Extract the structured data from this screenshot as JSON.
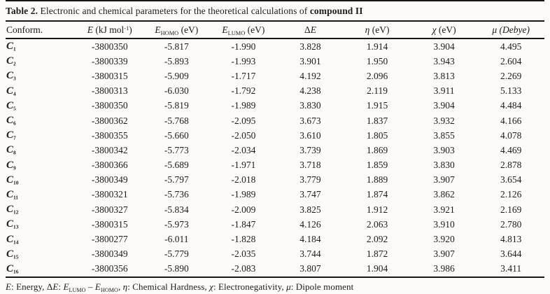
{
  "page": {
    "background_color": "#fcfbf8",
    "text_color": "#1c1c1c",
    "rule_color": "#161616"
  },
  "caption": {
    "text": "Table 2. Electronic and chemical parameters for the theoretical calculations of compound II",
    "segments": [
      {
        "t": "Table 2.",
        "s": "b"
      },
      {
        "t": " Electronic and chemical parameters for the theoretical calculations of ",
        "s": "n"
      },
      {
        "t": "compound II",
        "s": "b"
      }
    ]
  },
  "table": {
    "columns": [
      {
        "id": "conform",
        "text": "Conform.",
        "segments": [
          {
            "t": "Conform.",
            "s": "n"
          }
        ]
      },
      {
        "id": "energy",
        "text": "E (kJ mol-1)",
        "segments": [
          {
            "t": "E",
            "s": "i"
          },
          {
            "t": " (kJ mol",
            "s": "n"
          },
          {
            "t": "-1",
            "s": "sup"
          },
          {
            "t": ")",
            "s": "n"
          }
        ]
      },
      {
        "id": "e-homo",
        "text": "EHOMO (eV)",
        "segments": [
          {
            "t": "E",
            "s": "i"
          },
          {
            "t": "HOMO",
            "s": "sub"
          },
          {
            "t": " (eV)",
            "s": "n"
          }
        ]
      },
      {
        "id": "e-lumo",
        "text": "ELUMO (eV)",
        "segments": [
          {
            "t": "E",
            "s": "i"
          },
          {
            "t": "LUMO",
            "s": "sub"
          },
          {
            "t": " (eV)",
            "s": "n"
          }
        ]
      },
      {
        "id": "delta-e",
        "text": "ΔE",
        "segments": [
          {
            "t": "Δ",
            "s": "n"
          },
          {
            "t": "E",
            "s": "i"
          }
        ]
      },
      {
        "id": "eta",
        "text": "η (eV)",
        "segments": [
          {
            "t": "η",
            "s": "i"
          },
          {
            "t": " (eV)",
            "s": "n"
          }
        ]
      },
      {
        "id": "chi",
        "text": "χ (eV)",
        "segments": [
          {
            "t": "χ",
            "s": "i"
          },
          {
            "t": " (eV)",
            "s": "n"
          }
        ]
      },
      {
        "id": "mu",
        "text": "μ (Debye)",
        "segments": [
          {
            "t": "μ (Debye)",
            "s": "i"
          }
        ]
      }
    ],
    "rows": [
      {
        "conformer": {
          "symbol": "C",
          "sub": "1"
        },
        "values": [
          "-3800350",
          "-5.817",
          "-1.990",
          "3.828",
          "1.914",
          "3.904",
          "4.495"
        ]
      },
      {
        "conformer": {
          "symbol": "C",
          "sub": "2"
        },
        "values": [
          "-3800339",
          "-5.893",
          "-1.993",
          "3.901",
          "1.950",
          "3.943",
          "2.604"
        ]
      },
      {
        "conformer": {
          "symbol": "C",
          "sub": "3"
        },
        "values": [
          "-3800315",
          "-5.909",
          "-1.717",
          "4.192",
          "2.096",
          "3.813",
          "2.269"
        ]
      },
      {
        "conformer": {
          "symbol": "C",
          "sub": "4"
        },
        "values": [
          "-3800313",
          "-6.030",
          "-1.792",
          "4.238",
          "2.119",
          "3.911",
          "5.133"
        ]
      },
      {
        "conformer": {
          "symbol": "C",
          "sub": "5"
        },
        "values": [
          "-3800350",
          "-5.819",
          "-1.989",
          "3.830",
          "1.915",
          "3.904",
          "4.484"
        ]
      },
      {
        "conformer": {
          "symbol": "C",
          "sub": "6"
        },
        "values": [
          "-3800362",
          "-5.768",
          "-2.095",
          "3.673",
          "1.837",
          "3.932",
          "4.166"
        ]
      },
      {
        "conformer": {
          "symbol": "C",
          "sub": "7"
        },
        "values": [
          "-3800355",
          "-5.660",
          "-2.050",
          "3.610",
          "1.805",
          "3.855",
          "4.078"
        ]
      },
      {
        "conformer": {
          "symbol": "C",
          "sub": "8"
        },
        "values": [
          "-3800342",
          "-5.773",
          "-2.034",
          "3.739",
          "1.869",
          "3.903",
          "4.469"
        ]
      },
      {
        "conformer": {
          "symbol": "C",
          "sub": "9"
        },
        "values": [
          "-3800366",
          "-5.689",
          "-1.971",
          "3.718",
          "1.859",
          "3.830",
          "2.878"
        ]
      },
      {
        "conformer": {
          "symbol": "C",
          "sub": "10"
        },
        "values": [
          "-3800349",
          "-5.797",
          "-2.018",
          "3.779",
          "1.889",
          "3.907",
          "3.654"
        ]
      },
      {
        "conformer": {
          "symbol": "C",
          "sub": "11"
        },
        "values": [
          "-3800321",
          "-5.736",
          "-1.989",
          "3.747",
          "1.874",
          "3.862",
          "2.126"
        ]
      },
      {
        "conformer": {
          "symbol": "C",
          "sub": "12"
        },
        "values": [
          "-3800327",
          "-5.834",
          "-2.009",
          "3.825",
          "1.912",
          "3.921",
          "2.169"
        ]
      },
      {
        "conformer": {
          "symbol": "C",
          "sub": "13"
        },
        "values": [
          "-3800315",
          "-5.973",
          "-1.847",
          "4.126",
          "2.063",
          "3.910",
          "2.780"
        ]
      },
      {
        "conformer": {
          "symbol": "C",
          "sub": "14"
        },
        "values": [
          "-3800277",
          "-6.011",
          "-1.828",
          "4.184",
          "2.092",
          "3.920",
          "4.813"
        ]
      },
      {
        "conformer": {
          "symbol": "C",
          "sub": "15"
        },
        "values": [
          "-3800349",
          "-5.779",
          "-2.035",
          "3.744",
          "1.872",
          "3.907",
          "3.644"
        ]
      },
      {
        "conformer": {
          "symbol": "C",
          "sub": "16"
        },
        "values": [
          "-3800356",
          "-5.890",
          "-2.083",
          "3.807",
          "1.904",
          "3.986",
          "3.411"
        ]
      }
    ]
  },
  "footnote": {
    "text": "E: Energy, ΔE: ELUMO – EHOMO, η: Chemical Hardness, χ: Electronegativity, μ: Dipole moment",
    "segments": [
      {
        "t": "E",
        "s": "i"
      },
      {
        "t": ": Energy, Δ",
        "s": "n"
      },
      {
        "t": "E",
        "s": "i"
      },
      {
        "t": ": ",
        "s": "n"
      },
      {
        "t": "E",
        "s": "i"
      },
      {
        "t": "LUMO",
        "s": "sub"
      },
      {
        "t": " – ",
        "s": "n"
      },
      {
        "t": "E",
        "s": "i"
      },
      {
        "t": "HOMO",
        "s": "sub"
      },
      {
        "t": ", ",
        "s": "n"
      },
      {
        "t": "η",
        "s": "i"
      },
      {
        "t": ": Chemical Hardness, ",
        "s": "n"
      },
      {
        "t": "χ",
        "s": "i"
      },
      {
        "t": ": Electronegativity, ",
        "s": "n"
      },
      {
        "t": "μ",
        "s": "i"
      },
      {
        "t": ": Dipole moment",
        "s": "n"
      }
    ]
  }
}
